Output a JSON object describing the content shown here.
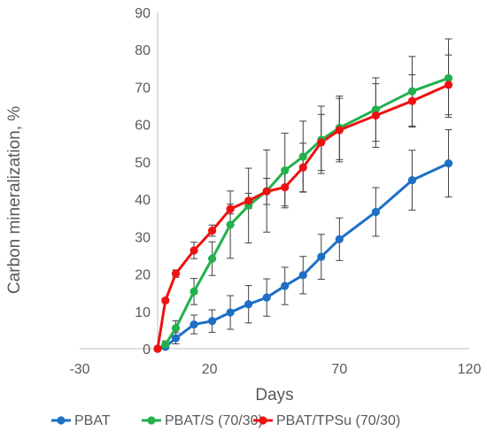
{
  "chart_data": {
    "type": "line",
    "xlabel": "Days",
    "ylabel": "Carbon mineralization, %",
    "xlim": [
      -30,
      120
    ],
    "ylim": [
      0,
      90
    ],
    "x_ticks": [
      -30,
      20,
      70,
      120
    ],
    "y_ticks": [
      0,
      10,
      20,
      30,
      40,
      50,
      60,
      70,
      80,
      90
    ],
    "grid": false,
    "legend_position": "bottom",
    "series": [
      {
        "name": "PBAT",
        "color": "#1f6fc5",
        "points": [
          {
            "x": 0,
            "y": 0,
            "err": 0
          },
          {
            "x": 3,
            "y": 0.5,
            "err": 0.5
          },
          {
            "x": 7,
            "y": 2.8,
            "err": 1.5
          },
          {
            "x": 14,
            "y": 6.5,
            "err": 2.5
          },
          {
            "x": 21,
            "y": 7.4,
            "err": 3
          },
          {
            "x": 28,
            "y": 9.7,
            "err": 4.5
          },
          {
            "x": 35,
            "y": 11.9,
            "err": 5
          },
          {
            "x": 42,
            "y": 13.7,
            "err": 5
          },
          {
            "x": 49,
            "y": 16.8,
            "err": 5
          },
          {
            "x": 56,
            "y": 19.7,
            "err": 5
          },
          {
            "x": 63,
            "y": 24.6,
            "err": 6
          },
          {
            "x": 70,
            "y": 29.3,
            "err": 5.7
          },
          {
            "x": 84,
            "y": 36.6,
            "err": 6.5
          },
          {
            "x": 98,
            "y": 45.1,
            "err": 8
          },
          {
            "x": 112,
            "y": 49.6,
            "err": 9
          }
        ]
      },
      {
        "name": "PBAT/S (70/30)",
        "color": "#22b14c",
        "points": [
          {
            "x": 0,
            "y": 0,
            "err": 0
          },
          {
            "x": 3,
            "y": 1.1,
            "err": 1
          },
          {
            "x": 7,
            "y": 5.5,
            "err": 2
          },
          {
            "x": 14,
            "y": 15.3,
            "err": 3.5
          },
          {
            "x": 21,
            "y": 24.1,
            "err": 4.5
          },
          {
            "x": 28,
            "y": 33.2,
            "err": 9
          },
          {
            "x": 35,
            "y": 38.3,
            "err": 10
          },
          {
            "x": 42,
            "y": 42.2,
            "err": 11
          },
          {
            "x": 49,
            "y": 47.7,
            "err": 10
          },
          {
            "x": 56,
            "y": 51.4,
            "err": 9.5
          },
          {
            "x": 63,
            "y": 55.9,
            "err": 9
          },
          {
            "x": 70,
            "y": 59.1,
            "err": 8.5
          },
          {
            "x": 84,
            "y": 64,
            "err": 8.5
          },
          {
            "x": 98,
            "y": 68.9,
            "err": 9.3
          },
          {
            "x": 112,
            "y": 72.4,
            "err": 10.5
          }
        ]
      },
      {
        "name": "PBAT/TPSu (70/30)",
        "color": "#ee1111",
        "points": [
          {
            "x": 0,
            "y": 0,
            "err": 0
          },
          {
            "x": 3,
            "y": 12.9,
            "err": 0.5
          },
          {
            "x": 7,
            "y": 20.1,
            "err": 1
          },
          {
            "x": 14,
            "y": 26.3,
            "err": 2.2
          },
          {
            "x": 21,
            "y": 31.6,
            "err": 1.5
          },
          {
            "x": 28,
            "y": 37.4,
            "err": 1.3
          },
          {
            "x": 35,
            "y": 39.6,
            "err": 2
          },
          {
            "x": 42,
            "y": 42.1,
            "err": 3.5
          },
          {
            "x": 49,
            "y": 43.2,
            "err": 5
          },
          {
            "x": 56,
            "y": 48.5,
            "err": 6.5
          },
          {
            "x": 63,
            "y": 55.2,
            "err": 7.5
          },
          {
            "x": 70,
            "y": 58.5,
            "err": 8.5
          },
          {
            "x": 84,
            "y": 62.4,
            "err": 8.5
          },
          {
            "x": 98,
            "y": 66.3,
            "err": 7
          },
          {
            "x": 112,
            "y": 70.6,
            "err": 8
          }
        ]
      }
    ]
  }
}
